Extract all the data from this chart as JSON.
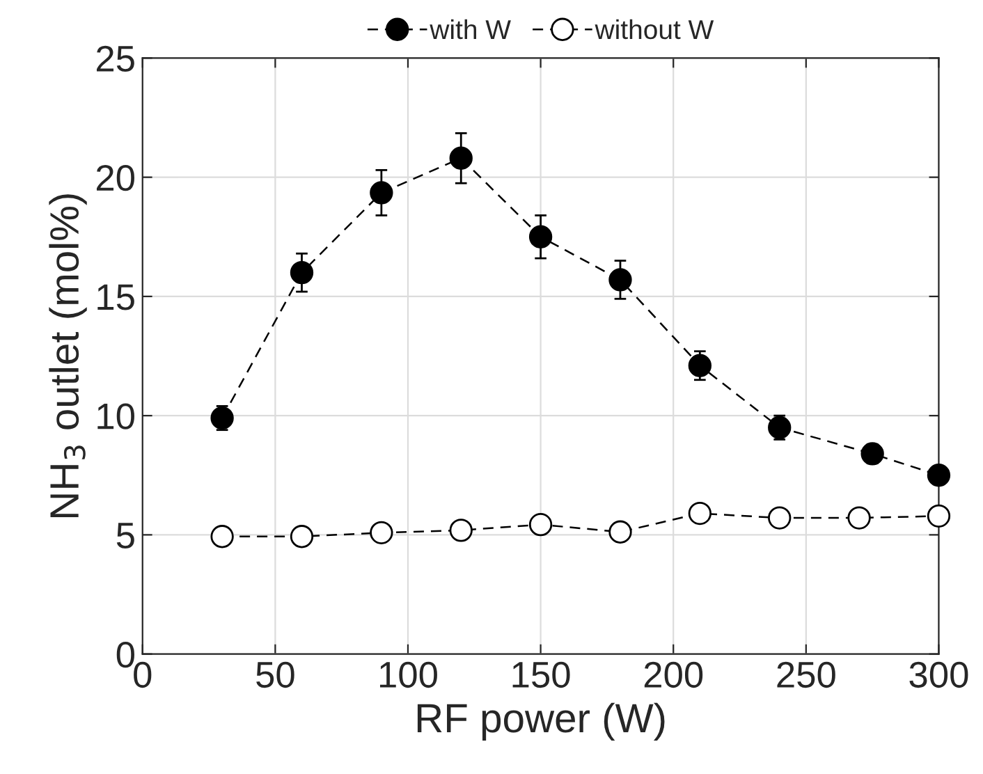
{
  "chart_data": {
    "type": "line",
    "xlabel": "RF power (W)",
    "ylabel": "NH$_{3}$ outlet (mol%)",
    "xlim": [
      0,
      300
    ],
    "xticks": [
      0,
      50,
      100,
      150,
      200,
      250,
      300
    ],
    "ylim": [
      0,
      25
    ],
    "yticks": [
      0,
      5,
      10,
      15,
      20,
      25
    ],
    "grid": true,
    "legend": "top",
    "marker": "circle",
    "line_style": "dashed",
    "series": [
      {
        "name": "with W",
        "color": "#000000",
        "x": [
          30,
          60,
          90,
          120,
          150,
          180,
          210,
          240,
          275,
          300
        ],
        "values": [
          9.9,
          16.0,
          19.35,
          20.8,
          17.5,
          15.7,
          12.1,
          9.5,
          8.4,
          7.5
        ],
        "errors": [
          0.5,
          0.8,
          0.95,
          1.05,
          0.9,
          0.8,
          0.6,
          0.5,
          0.4,
          null
        ]
      },
      {
        "name": "without W",
        "color": "#ffffff",
        "x": [
          30,
          60,
          90,
          120,
          150,
          180,
          210,
          240,
          270,
          300
        ],
        "values": [
          4.93,
          4.93,
          5.09,
          5.19,
          5.43,
          5.12,
          5.9,
          5.71,
          5.71,
          5.79
        ]
      }
    ]
  }
}
